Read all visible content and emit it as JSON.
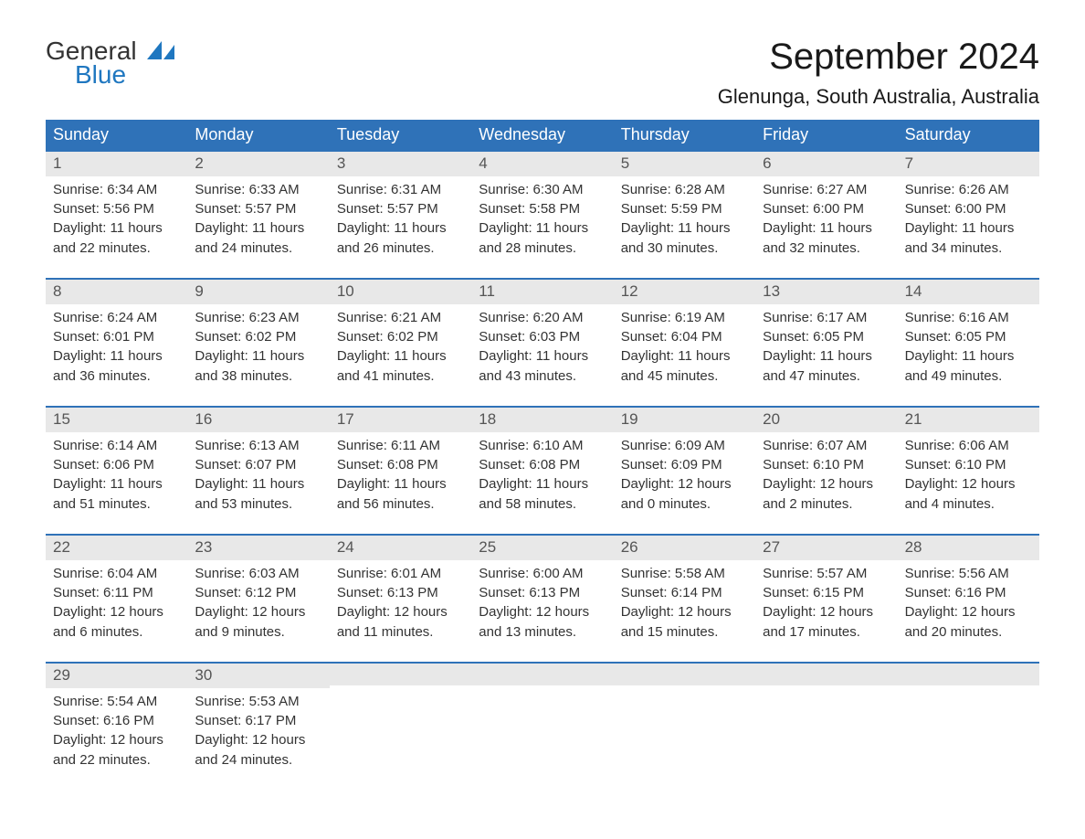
{
  "brand": {
    "general": "General",
    "blue": "Blue",
    "text_color": "#333333",
    "accent_color": "#1f77c0"
  },
  "header": {
    "month_title": "September 2024",
    "location": "Glenunga, South Australia, Australia",
    "title_fontsize_pt": 30,
    "location_fontsize_pt": 17
  },
  "calendar": {
    "type": "table",
    "columns_count": 7,
    "header_bg": "#2f72b8",
    "header_fg": "#ffffff",
    "daynum_bar_bg": "#e8e8e8",
    "daynum_bar_border_top": "#2f72b8",
    "body_text_color": "#333333",
    "background_color": "#ffffff",
    "cell_fontsize_pt": 11,
    "header_fontsize_pt": 14,
    "days_of_week": [
      "Sunday",
      "Monday",
      "Tuesday",
      "Wednesday",
      "Thursday",
      "Friday",
      "Saturday"
    ],
    "weeks": [
      [
        {
          "n": "1",
          "sunrise": "Sunrise: 6:34 AM",
          "sunset": "Sunset: 5:56 PM",
          "dl1": "Daylight: 11 hours",
          "dl2": "and 22 minutes."
        },
        {
          "n": "2",
          "sunrise": "Sunrise: 6:33 AM",
          "sunset": "Sunset: 5:57 PM",
          "dl1": "Daylight: 11 hours",
          "dl2": "and 24 minutes."
        },
        {
          "n": "3",
          "sunrise": "Sunrise: 6:31 AM",
          "sunset": "Sunset: 5:57 PM",
          "dl1": "Daylight: 11 hours",
          "dl2": "and 26 minutes."
        },
        {
          "n": "4",
          "sunrise": "Sunrise: 6:30 AM",
          "sunset": "Sunset: 5:58 PM",
          "dl1": "Daylight: 11 hours",
          "dl2": "and 28 minutes."
        },
        {
          "n": "5",
          "sunrise": "Sunrise: 6:28 AM",
          "sunset": "Sunset: 5:59 PM",
          "dl1": "Daylight: 11 hours",
          "dl2": "and 30 minutes."
        },
        {
          "n": "6",
          "sunrise": "Sunrise: 6:27 AM",
          "sunset": "Sunset: 6:00 PM",
          "dl1": "Daylight: 11 hours",
          "dl2": "and 32 minutes."
        },
        {
          "n": "7",
          "sunrise": "Sunrise: 6:26 AM",
          "sunset": "Sunset: 6:00 PM",
          "dl1": "Daylight: 11 hours",
          "dl2": "and 34 minutes."
        }
      ],
      [
        {
          "n": "8",
          "sunrise": "Sunrise: 6:24 AM",
          "sunset": "Sunset: 6:01 PM",
          "dl1": "Daylight: 11 hours",
          "dl2": "and 36 minutes."
        },
        {
          "n": "9",
          "sunrise": "Sunrise: 6:23 AM",
          "sunset": "Sunset: 6:02 PM",
          "dl1": "Daylight: 11 hours",
          "dl2": "and 38 minutes."
        },
        {
          "n": "10",
          "sunrise": "Sunrise: 6:21 AM",
          "sunset": "Sunset: 6:02 PM",
          "dl1": "Daylight: 11 hours",
          "dl2": "and 41 minutes."
        },
        {
          "n": "11",
          "sunrise": "Sunrise: 6:20 AM",
          "sunset": "Sunset: 6:03 PM",
          "dl1": "Daylight: 11 hours",
          "dl2": "and 43 minutes."
        },
        {
          "n": "12",
          "sunrise": "Sunrise: 6:19 AM",
          "sunset": "Sunset: 6:04 PM",
          "dl1": "Daylight: 11 hours",
          "dl2": "and 45 minutes."
        },
        {
          "n": "13",
          "sunrise": "Sunrise: 6:17 AM",
          "sunset": "Sunset: 6:05 PM",
          "dl1": "Daylight: 11 hours",
          "dl2": "and 47 minutes."
        },
        {
          "n": "14",
          "sunrise": "Sunrise: 6:16 AM",
          "sunset": "Sunset: 6:05 PM",
          "dl1": "Daylight: 11 hours",
          "dl2": "and 49 minutes."
        }
      ],
      [
        {
          "n": "15",
          "sunrise": "Sunrise: 6:14 AM",
          "sunset": "Sunset: 6:06 PM",
          "dl1": "Daylight: 11 hours",
          "dl2": "and 51 minutes."
        },
        {
          "n": "16",
          "sunrise": "Sunrise: 6:13 AM",
          "sunset": "Sunset: 6:07 PM",
          "dl1": "Daylight: 11 hours",
          "dl2": "and 53 minutes."
        },
        {
          "n": "17",
          "sunrise": "Sunrise: 6:11 AM",
          "sunset": "Sunset: 6:08 PM",
          "dl1": "Daylight: 11 hours",
          "dl2": "and 56 minutes."
        },
        {
          "n": "18",
          "sunrise": "Sunrise: 6:10 AM",
          "sunset": "Sunset: 6:08 PM",
          "dl1": "Daylight: 11 hours",
          "dl2": "and 58 minutes."
        },
        {
          "n": "19",
          "sunrise": "Sunrise: 6:09 AM",
          "sunset": "Sunset: 6:09 PM",
          "dl1": "Daylight: 12 hours",
          "dl2": "and 0 minutes."
        },
        {
          "n": "20",
          "sunrise": "Sunrise: 6:07 AM",
          "sunset": "Sunset: 6:10 PM",
          "dl1": "Daylight: 12 hours",
          "dl2": "and 2 minutes."
        },
        {
          "n": "21",
          "sunrise": "Sunrise: 6:06 AM",
          "sunset": "Sunset: 6:10 PM",
          "dl1": "Daylight: 12 hours",
          "dl2": "and 4 minutes."
        }
      ],
      [
        {
          "n": "22",
          "sunrise": "Sunrise: 6:04 AM",
          "sunset": "Sunset: 6:11 PM",
          "dl1": "Daylight: 12 hours",
          "dl2": "and 6 minutes."
        },
        {
          "n": "23",
          "sunrise": "Sunrise: 6:03 AM",
          "sunset": "Sunset: 6:12 PM",
          "dl1": "Daylight: 12 hours",
          "dl2": "and 9 minutes."
        },
        {
          "n": "24",
          "sunrise": "Sunrise: 6:01 AM",
          "sunset": "Sunset: 6:13 PM",
          "dl1": "Daylight: 12 hours",
          "dl2": "and 11 minutes."
        },
        {
          "n": "25",
          "sunrise": "Sunrise: 6:00 AM",
          "sunset": "Sunset: 6:13 PM",
          "dl1": "Daylight: 12 hours",
          "dl2": "and 13 minutes."
        },
        {
          "n": "26",
          "sunrise": "Sunrise: 5:58 AM",
          "sunset": "Sunset: 6:14 PM",
          "dl1": "Daylight: 12 hours",
          "dl2": "and 15 minutes."
        },
        {
          "n": "27",
          "sunrise": "Sunrise: 5:57 AM",
          "sunset": "Sunset: 6:15 PM",
          "dl1": "Daylight: 12 hours",
          "dl2": "and 17 minutes."
        },
        {
          "n": "28",
          "sunrise": "Sunrise: 5:56 AM",
          "sunset": "Sunset: 6:16 PM",
          "dl1": "Daylight: 12 hours",
          "dl2": "and 20 minutes."
        }
      ],
      [
        {
          "n": "29",
          "sunrise": "Sunrise: 5:54 AM",
          "sunset": "Sunset: 6:16 PM",
          "dl1": "Daylight: 12 hours",
          "dl2": "and 22 minutes."
        },
        {
          "n": "30",
          "sunrise": "Sunrise: 5:53 AM",
          "sunset": "Sunset: 6:17 PM",
          "dl1": "Daylight: 12 hours",
          "dl2": "and 24 minutes."
        },
        {
          "empty": true
        },
        {
          "empty": true
        },
        {
          "empty": true
        },
        {
          "empty": true
        },
        {
          "empty": true
        }
      ]
    ]
  }
}
